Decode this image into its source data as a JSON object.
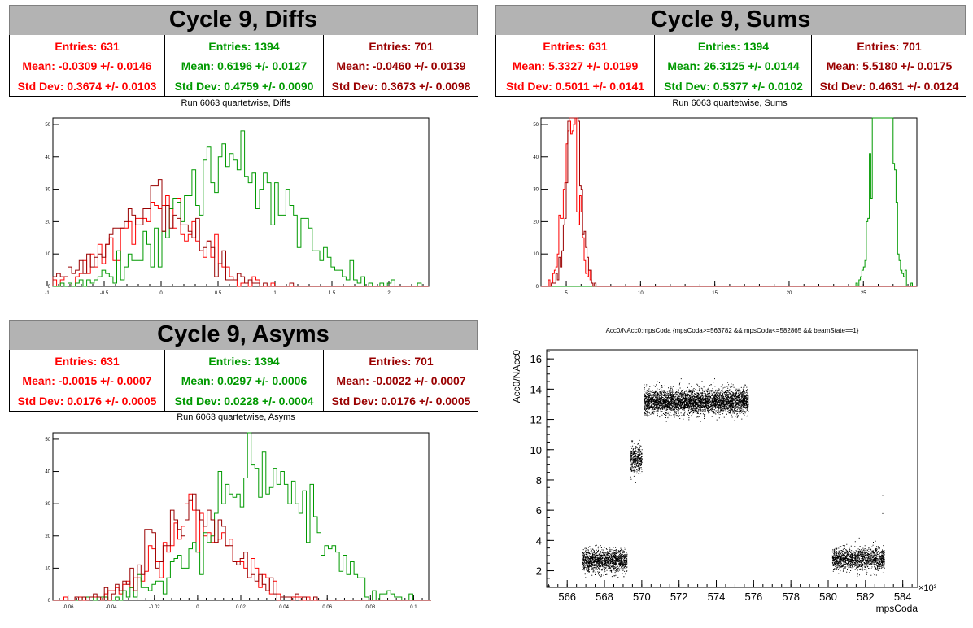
{
  "colors": {
    "red": "#ff0000",
    "green": "#009900",
    "darkred": "#990000"
  },
  "panels": {
    "diffs": {
      "title": "Cycle 9, Diffs",
      "stats": [
        {
          "color": "#ff0000",
          "entries": "Entries: 631",
          "mean": "Mean: -0.0309 +/- 0.0146",
          "std": "Std Dev: 0.3674 +/- 0.0103"
        },
        {
          "color": "#009900",
          "entries": "Entries: 1394",
          "mean": "Mean: 0.6196 +/- 0.0127",
          "std": "Std Dev: 0.4759 +/- 0.0090"
        },
        {
          "color": "#990000",
          "entries": "Entries: 701",
          "mean": "Mean: -0.0460 +/- 0.0139",
          "std": "Std Dev: 0.3673 +/- 0.0098"
        }
      ],
      "subtitle": "Run 6063 quartetwise, Diffs"
    },
    "sums": {
      "title": "Cycle 9, Sums",
      "stats": [
        {
          "color": "#ff0000",
          "entries": "Entries: 631",
          "mean": "Mean: 5.3327 +/- 0.0199",
          "std": "Std Dev: 0.5011 +/- 0.0141"
        },
        {
          "color": "#009900",
          "entries": "Entries: 1394",
          "mean": "Mean: 26.3125 +/- 0.0144",
          "std": "Std Dev: 0.5377 +/- 0.0102"
        },
        {
          "color": "#990000",
          "entries": "Entries: 701",
          "mean": "Mean: 5.5180 +/- 0.0175",
          "std": "Std Dev: 0.4631 +/- 0.0124"
        }
      ],
      "subtitle": "Run 6063 quartetwise, Sums"
    },
    "asyms": {
      "title": "Cycle 9, Asyms",
      "stats": [
        {
          "color": "#ff0000",
          "entries": "Entries: 631",
          "mean": "Mean: -0.0015 +/- 0.0007",
          "std": "Std Dev: 0.0176 +/- 0.0005"
        },
        {
          "color": "#009900",
          "entries": "Entries: 1394",
          "mean": "Mean: 0.0297 +/- 0.0006",
          "std": "Std Dev: 0.0228 +/- 0.0004"
        },
        {
          "color": "#990000",
          "entries": "Entries: 701",
          "mean": "Mean: -0.0022 +/- 0.0007",
          "std": "Std Dev: 0.0176 +/- 0.0005"
        }
      ],
      "subtitle": "Run 6063 quartetwise, Asyms"
    },
    "scatter": {
      "title": "Acc0/NAcc0:mpsCoda {mpsCoda>=563782 && mpsCoda<=582865 && beamState==1}"
    }
  },
  "chart_data": [
    {
      "type": "histogram",
      "title": "Run 6063 quartetwise, Diffs",
      "xlim": [
        -0.95,
        2.35
      ],
      "ylim": [
        0,
        52
      ],
      "xticks": [
        -1,
        -0.5,
        0,
        0.5,
        1,
        1.5,
        2
      ],
      "xtick_labels": [
        "-1",
        "-0.5",
        "0",
        "0.5",
        "1",
        "1.5",
        "2"
      ],
      "yticks": [
        0,
        10,
        20,
        30,
        40,
        50
      ],
      "bin_width": 0.033,
      "series": [
        {
          "color": "#ff0000",
          "entries": 631,
          "mean": -0.0309,
          "std": 0.3674
        },
        {
          "color": "#009900",
          "entries": 1394,
          "mean": 0.6196,
          "std": 0.4759
        },
        {
          "color": "#990000",
          "entries": 701,
          "mean": -0.046,
          "std": 0.3673
        }
      ]
    },
    {
      "type": "histogram",
      "title": "Run 6063 quartetwise, Sums",
      "xlim": [
        3.3,
        28.6
      ],
      "ylim": [
        0,
        52
      ],
      "xticks": [
        5,
        10,
        15,
        20,
        25
      ],
      "xtick_labels": [
        "5",
        "10",
        "15",
        "20",
        "25"
      ],
      "yticks": [
        0,
        10,
        20,
        30,
        40,
        50
      ],
      "bin_width": 0.1,
      "series": [
        {
          "color": "#ff0000",
          "entries": 631,
          "mean": 5.3327,
          "std": 0.5011
        },
        {
          "color": "#009900",
          "entries": 1394,
          "mean": 26.3125,
          "std": 0.5377
        },
        {
          "color": "#990000",
          "entries": 701,
          "mean": 5.518,
          "std": 0.4631
        }
      ]
    },
    {
      "type": "histogram",
      "title": "Run 6063 quartetwise, Asyms",
      "xlim": [
        -0.067,
        0.107
      ],
      "ylim": [
        0,
        52
      ],
      "xticks": [
        -0.06,
        -0.04,
        -0.02,
        0,
        0.02,
        0.04,
        0.06,
        0.08,
        0.1
      ],
      "xtick_labels": [
        "-0.06",
        "-0.04",
        "-0.02",
        "0",
        "0.02",
        "0.04",
        "0.06",
        "0.08",
        "0.1"
      ],
      "yticks": [
        0,
        10,
        20,
        30,
        40,
        50
      ],
      "bin_width": 0.0017,
      "series": [
        {
          "color": "#ff0000",
          "entries": 631,
          "mean": -0.0015,
          "std": 0.0176
        },
        {
          "color": "#009900",
          "entries": 1394,
          "mean": 0.0297,
          "std": 0.0228
        },
        {
          "color": "#990000",
          "entries": 701,
          "mean": -0.0022,
          "std": 0.0176
        }
      ]
    },
    {
      "type": "scatter",
      "title": "Acc0/NAcc0:mpsCoda {mpsCoda>=563782 && mpsCoda<=582865 && beamState==1}",
      "xlabel": "mpsCoda",
      "ylabel": "Acc0/NAcc0",
      "x_multiplier": "×10³",
      "xlim": [
        564.9,
        584.8
      ],
      "ylim": [
        0.9,
        16.6
      ],
      "xticks": [
        566,
        568,
        570,
        572,
        574,
        576,
        578,
        580,
        582,
        584
      ],
      "yticks": [
        2,
        4,
        6,
        8,
        10,
        12,
        14,
        16
      ],
      "color": "#000000",
      "clusters": [
        {
          "x": [
            566.8,
            569.2
          ],
          "y_center": 2.7,
          "y_spread": 0.45,
          "count": 1300
        },
        {
          "x": [
            569.35,
            570.0
          ],
          "y_center": 9.4,
          "y_spread": 0.55,
          "count": 350
        },
        {
          "x": [
            570.1,
            575.7
          ],
          "y_center": 13.2,
          "y_spread": 0.5,
          "count": 3800
        },
        {
          "x": [
            580.2,
            583.0
          ],
          "y_center": 2.8,
          "y_spread": 0.45,
          "count": 1400
        }
      ],
      "outliers": [
        [
          582.9,
          7.0
        ],
        [
          582.9,
          5.8
        ],
        [
          582.9,
          5.9
        ]
      ]
    }
  ]
}
